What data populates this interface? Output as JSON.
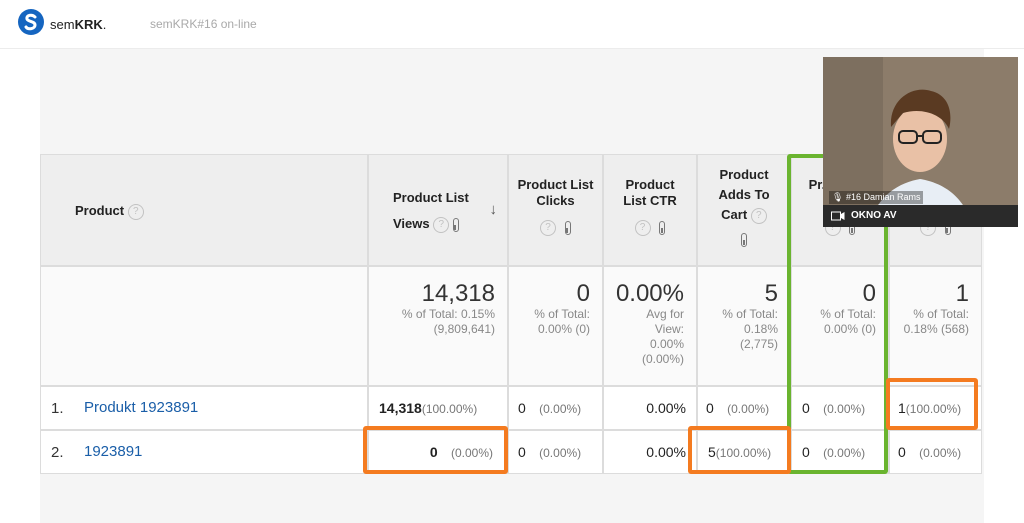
{
  "header": {
    "brand_prefix": "sem",
    "brand_bold": "KRK",
    "brand_suffix": ".",
    "session": "semKRK#16 on-line"
  },
  "columns": [
    {
      "label": "Product"
    },
    {
      "label": "Product List Views"
    },
    {
      "label": "Product List Clicks"
    },
    {
      "label": "Product List CTR"
    },
    {
      "label": "Product Adds To Cart"
    },
    {
      "label": "Pr... Che..."
    },
    {
      "label": ""
    }
  ],
  "totals": [
    {
      "value": "14,318",
      "sub": "% of Total: 0.15% (9,809,641)"
    },
    {
      "value": "0",
      "sub": "% of Total: 0.00% (0)"
    },
    {
      "value": "0.00%",
      "sub": "Avg for View: 0.00% (0.00%)"
    },
    {
      "value": "5",
      "sub": "% of Total: 0.18% (2,775)"
    },
    {
      "value": "0",
      "sub": "% of Total: 0.00% (0)"
    },
    {
      "value": "1",
      "sub": "% of Total: 0.18% (568)"
    }
  ],
  "rows": [
    {
      "index": "1.",
      "product": "Produkt 1923891",
      "cells": [
        {
          "v": "14,318",
          "p": "(100.00%)"
        },
        {
          "v": "0",
          "p": "(0.00%)"
        },
        {
          "v": "0.00%",
          "p": ""
        },
        {
          "v": "0",
          "p": "(0.00%)"
        },
        {
          "v": "0",
          "p": "(0.00%)"
        },
        {
          "v": "1",
          "p": "(100.00%)"
        }
      ]
    },
    {
      "index": "2.",
      "product": "1923891",
      "cells": [
        {
          "v": "0",
          "p": "(0.00%)"
        },
        {
          "v": "0",
          "p": "(0.00%)"
        },
        {
          "v": "0.00%",
          "p": ""
        },
        {
          "v": "5",
          "p": "(100.00%)"
        },
        {
          "v": "0",
          "p": "(0.00%)"
        },
        {
          "v": "0",
          "p": "(0.00%)"
        }
      ]
    }
  ],
  "video": {
    "name_tag": "#16 Damian Rams",
    "label": "OKNO AV"
  },
  "colors": {
    "highlight_orange": "#f47b20",
    "highlight_green": "#6ab42f",
    "link": "#1a5ea8"
  }
}
